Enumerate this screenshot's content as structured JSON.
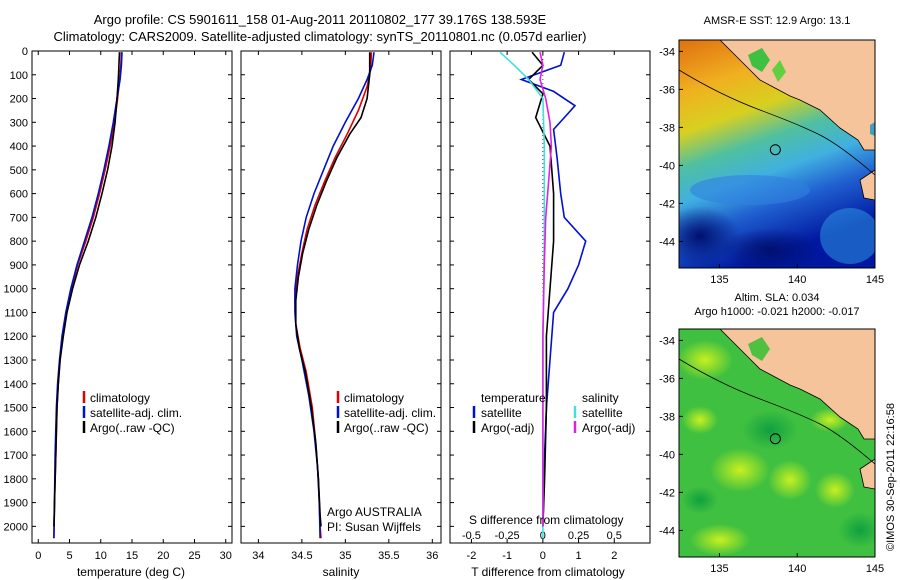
{
  "header": {
    "line1": "Argo profile: CS 5901611_158 01-Aug-2011 20110802_177 39.176S 138.593E",
    "line2": "Climatology: CARS2009. Satellite-adjusted climatology: synTS_20110801.nc (0.057d earlier)"
  },
  "colors": {
    "climatology": "#e00000",
    "satellite": "#0010d0",
    "argo": "#000000",
    "salinity_satellite": "#40e0e0",
    "salinity_argo": "#e020e0",
    "land": "#f6c49a"
  },
  "panels": {
    "temperature": {
      "xlabel": "temperature (deg C)",
      "legend": [
        "climatology",
        "satellite-adj. clim.",
        "Argo(..raw -QC)"
      ]
    },
    "salinity": {
      "xlabel": "salinity",
      "legend": [
        "climatology",
        "satellite-adj. clim.",
        "Argo(..raw -QC)"
      ],
      "note1": "Argo AUSTRALIA",
      "note2": "PI: Susan Wijffels"
    },
    "difference": {
      "top_axis_label": "S difference from climatology",
      "xlabel": "T difference from climatology",
      "legend_t_head": "temperature",
      "legend_s_head": "salinity",
      "legend_t": [
        "satellite",
        "Argo(-adj)"
      ],
      "legend_s": [
        "satellite",
        "Argo(-adj)"
      ]
    }
  },
  "maps": {
    "sst_title": "AMSR-E SST: 12.9 Argo: 13.1",
    "sla_title1": "Altim. SLA: 0.034",
    "sla_title2": "Argo h1000: -0.021 h2000: -0.017"
  },
  "footer": {
    "credit": "©IMOS 30-Sep-2011 22:16:58"
  },
  "chart_data": [
    {
      "type": "line",
      "name": "temperature profile",
      "xlabel": "temperature (deg C)",
      "xlim": [
        -1,
        31
      ],
      "xticks": [
        0,
        5,
        10,
        15,
        20,
        25,
        30
      ],
      "ylim": [
        2070,
        0
      ],
      "yticks": [
        0,
        100,
        200,
        300,
        400,
        500,
        600,
        700,
        800,
        900,
        1000,
        1100,
        1200,
        1300,
        1400,
        1500,
        1600,
        1700,
        1800,
        1900,
        2000
      ],
      "series": [
        {
          "name": "climatology",
          "color": "#e00000",
          "points": [
            [
              13.3,
              5
            ],
            [
              13.2,
              60
            ],
            [
              13.0,
              120
            ],
            [
              12.7,
              200
            ],
            [
              12.2,
              300
            ],
            [
              11.5,
              400
            ],
            [
              10.7,
              500
            ],
            [
              9.8,
              600
            ],
            [
              8.8,
              700
            ],
            [
              7.6,
              800
            ],
            [
              6.3,
              900
            ],
            [
              5.3,
              1000
            ],
            [
              4.5,
              1100
            ],
            [
              3.9,
              1200
            ],
            [
              3.5,
              1300
            ],
            [
              3.2,
              1400
            ],
            [
              3.0,
              1500
            ],
            [
              2.8,
              1700
            ],
            [
              2.6,
              1900
            ],
            [
              2.5,
              2050
            ]
          ]
        },
        {
          "name": "satellite-adj. clim.",
          "color": "#0010d0",
          "points": [
            [
              13.4,
              5
            ],
            [
              13.3,
              60
            ],
            [
              13.1,
              120
            ],
            [
              12.6,
              200
            ],
            [
              12.0,
              300
            ],
            [
              11.3,
              400
            ],
            [
              10.5,
              500
            ],
            [
              9.6,
              600
            ],
            [
              8.6,
              700
            ],
            [
              7.4,
              800
            ],
            [
              6.2,
              900
            ],
            [
              5.2,
              1000
            ],
            [
              4.4,
              1100
            ],
            [
              3.8,
              1200
            ],
            [
              3.4,
              1300
            ],
            [
              3.1,
              1400
            ],
            [
              2.9,
              1500
            ],
            [
              2.7,
              1700
            ],
            [
              2.6,
              1900
            ],
            [
              2.5,
              2050
            ]
          ]
        },
        {
          "name": "Argo(..raw -QC)",
          "color": "#000000",
          "points": [
            [
              13.0,
              5
            ],
            [
              12.9,
              60
            ],
            [
              12.8,
              120
            ],
            [
              12.6,
              200
            ],
            [
              12.3,
              300
            ],
            [
              11.8,
              400
            ],
            [
              11.1,
              500
            ],
            [
              10.2,
              600
            ],
            [
              9.2,
              700
            ],
            [
              8.0,
              800
            ],
            [
              6.6,
              900
            ],
            [
              5.5,
              1000
            ],
            [
              4.6,
              1100
            ],
            [
              4.0,
              1200
            ],
            [
              3.5,
              1300
            ],
            [
              3.2,
              1400
            ],
            [
              3.0,
              1500
            ],
            [
              2.8,
              1700
            ],
            [
              2.6,
              1900
            ],
            [
              2.5,
              2000
            ]
          ]
        }
      ]
    },
    {
      "type": "line",
      "name": "salinity profile",
      "xlabel": "salinity",
      "xlim": [
        33.8,
        36.1
      ],
      "xticks": [
        34,
        34.5,
        35,
        35.5,
        36
      ],
      "ylim": [
        2070,
        0
      ],
      "series": [
        {
          "name": "climatology",
          "color": "#e00000",
          "points": [
            [
              35.3,
              5
            ],
            [
              35.29,
              80
            ],
            [
              35.25,
              150
            ],
            [
              35.15,
              250
            ],
            [
              35.02,
              350
            ],
            [
              34.88,
              450
            ],
            [
              34.76,
              550
            ],
            [
              34.65,
              650
            ],
            [
              34.56,
              750
            ],
            [
              34.5,
              850
            ],
            [
              34.45,
              950
            ],
            [
              34.42,
              1050
            ],
            [
              34.43,
              1150
            ],
            [
              34.48,
              1250
            ],
            [
              34.55,
              1350
            ],
            [
              34.62,
              1500
            ],
            [
              34.66,
              1650
            ],
            [
              34.69,
              1800
            ],
            [
              34.71,
              2000
            ],
            [
              34.72,
              2050
            ]
          ]
        },
        {
          "name": "satellite-adj. clim.",
          "color": "#0010d0",
          "points": [
            [
              35.33,
              5
            ],
            [
              35.31,
              60
            ],
            [
              35.25,
              120
            ],
            [
              35.15,
              200
            ],
            [
              35.0,
              300
            ],
            [
              34.86,
              400
            ],
            [
              34.75,
              500
            ],
            [
              34.64,
              600
            ],
            [
              34.55,
              700
            ],
            [
              34.49,
              800
            ],
            [
              34.45,
              900
            ],
            [
              34.42,
              1000
            ],
            [
              34.42,
              1100
            ],
            [
              34.44,
              1200
            ],
            [
              34.5,
              1300
            ],
            [
              34.58,
              1450
            ],
            [
              34.64,
              1600
            ],
            [
              34.68,
              1750
            ],
            [
              34.7,
              1900
            ],
            [
              34.71,
              2050
            ]
          ]
        },
        {
          "name": "Argo(..raw -QC)",
          "color": "#000000",
          "points": [
            [
              35.28,
              5
            ],
            [
              35.28,
              100
            ],
            [
              35.25,
              200
            ],
            [
              35.18,
              280
            ],
            [
              35.05,
              350
            ],
            [
              34.9,
              450
            ],
            [
              34.78,
              550
            ],
            [
              34.67,
              650
            ],
            [
              34.58,
              750
            ],
            [
              34.51,
              850
            ],
            [
              34.46,
              950
            ],
            [
              34.43,
              1050
            ],
            [
              34.43,
              1150
            ],
            [
              34.47,
              1250
            ],
            [
              34.54,
              1350
            ],
            [
              34.61,
              1500
            ],
            [
              34.66,
              1650
            ],
            [
              34.69,
              1800
            ],
            [
              34.71,
              1950
            ],
            [
              34.72,
              2000
            ]
          ]
        }
      ]
    },
    {
      "type": "line",
      "name": "difference from climatology",
      "xlabel": "T difference from climatology",
      "x2label": "S difference from climatology",
      "xlim": [
        -2.6,
        3.0
      ],
      "xticks": [
        -2,
        -1,
        0,
        1,
        2
      ],
      "x2lim": [
        -0.65,
        0.75
      ],
      "x2ticks": [
        -0.5,
        -0.25,
        0,
        0.25,
        0.5
      ],
      "ylim": [
        2070,
        0
      ],
      "series": [
        {
          "name": "temperature satellite",
          "axis": "T",
          "color": "#0010d0",
          "points": [
            [
              0.6,
              5
            ],
            [
              0.5,
              60
            ],
            [
              -0.6,
              120
            ],
            [
              0.3,
              170
            ],
            [
              0.9,
              230
            ],
            [
              0.6,
              280
            ],
            [
              0.3,
              330
            ],
            [
              0.4,
              450
            ],
            [
              0.5,
              600
            ],
            [
              0.6,
              700
            ],
            [
              1.2,
              800
            ],
            [
              1.0,
              900
            ],
            [
              0.7,
              1000
            ],
            [
              0.3,
              1100
            ],
            [
              0.2,
              1300
            ],
            [
              0.1,
              1500
            ],
            [
              0.05,
              1700
            ],
            [
              0.0,
              2000
            ]
          ]
        },
        {
          "name": "temperature Argo(-adj)",
          "axis": "T",
          "color": "#000000",
          "points": [
            [
              -0.3,
              5
            ],
            [
              0.0,
              60
            ],
            [
              -0.4,
              120
            ],
            [
              0.0,
              180
            ],
            [
              -0.2,
              280
            ],
            [
              0.2,
              400
            ],
            [
              0.3,
              600
            ],
            [
              0.3,
              800
            ],
            [
              0.2,
              1000
            ],
            [
              0.1,
              1200
            ],
            [
              0.1,
              1500
            ],
            [
              0.05,
              1800
            ],
            [
              0.0,
              2000
            ]
          ]
        },
        {
          "name": "salinity satellite",
          "axis": "S",
          "color": "#40e0e0",
          "points": [
            [
              -0.3,
              5
            ],
            [
              -0.2,
              60
            ],
            [
              -0.1,
              120
            ],
            [
              0.0,
              200
            ],
            [
              0.01,
              400
            ],
            [
              0.01,
              800
            ],
            [
              0.0,
              1200
            ],
            [
              0.0,
              1600
            ],
            [
              0.0,
              2050
            ]
          ]
        },
        {
          "name": "salinity Argo(-adj)",
          "axis": "S",
          "color": "#e020e0",
          "points": [
            [
              -0.02,
              5
            ],
            [
              0.0,
              60
            ],
            [
              -0.02,
              120
            ],
            [
              0.02,
              200
            ],
            [
              0.05,
              300
            ],
            [
              0.06,
              400
            ],
            [
              0.04,
              550
            ],
            [
              0.02,
              700
            ],
            [
              0.01,
              900
            ],
            [
              0.0,
              1200
            ],
            [
              0.0,
              2000
            ]
          ]
        }
      ]
    },
    {
      "type": "heatmap",
      "name": "AMSR-E SST map",
      "title": "AMSR-E SST: 12.9 Argo: 13.1",
      "xlim": [
        132.4,
        145
      ],
      "xticks": [
        135,
        140,
        145
      ],
      "ylim": [
        -45.4,
        -33.4
      ],
      "yticks": [
        -34,
        -36,
        -38,
        -40,
        -42,
        -44
      ],
      "argo_position": [
        138.593,
        -39.176
      ]
    },
    {
      "type": "heatmap",
      "name": "Altimeter SLA map",
      "title": "Altim. SLA: 0.034",
      "subtitle": "Argo h1000: -0.021 h2000: -0.017",
      "xlim": [
        132.4,
        145
      ],
      "xticks": [
        135,
        140,
        145
      ],
      "ylim": [
        -45.4,
        -33.4
      ],
      "yticks": [
        -34,
        -36,
        -38,
        -40,
        -42,
        -44
      ],
      "argo_position": [
        138.593,
        -39.176
      ]
    }
  ]
}
